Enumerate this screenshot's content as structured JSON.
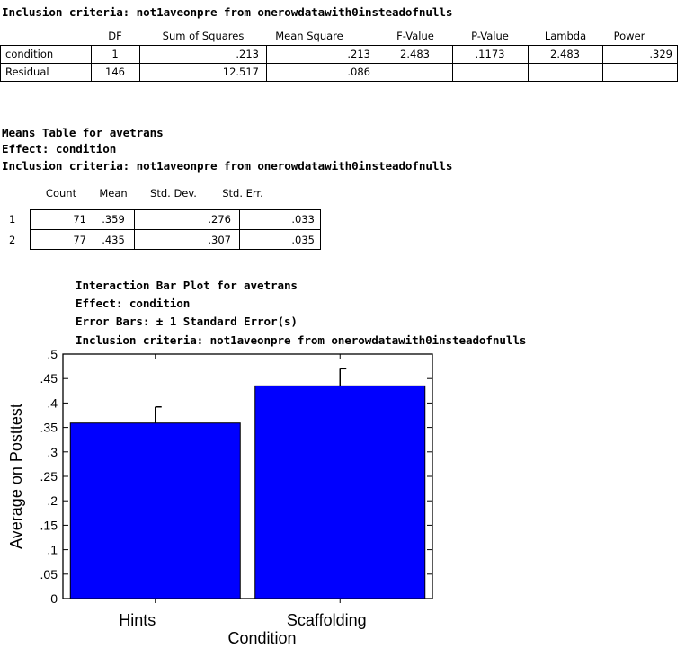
{
  "anova": {
    "header": "Inclusion criteria: not1aveonpre from onerowdatawith0insteadofnulls",
    "columns": [
      "DF",
      "Sum of Squares",
      "Mean Square",
      "F-Value",
      "P-Value",
      "Lambda",
      "Power"
    ],
    "rows": [
      {
        "label": "condition",
        "cells": [
          "1",
          ".213",
          ".213",
          "2.483",
          ".1173",
          "2.483",
          ".329"
        ]
      },
      {
        "label": "Residual",
        "cells": [
          "146",
          "12.517",
          ".086",
          "",
          "",
          "",
          ""
        ]
      }
    ]
  },
  "means": {
    "title": "Means Table for avetrans",
    "effect": "Effect: condition",
    "inclusion": "Inclusion criteria: not1aveonpre from onerowdatawith0insteadofnulls",
    "columns": [
      "Count",
      "Mean",
      "Std. Dev.",
      "Std. Err."
    ],
    "rows": [
      {
        "label": "1",
        "cells": [
          "71",
          ".359",
          ".276",
          ".033"
        ]
      },
      {
        "label": "2",
        "cells": [
          "77",
          ".435",
          ".307",
          ".035"
        ]
      }
    ]
  },
  "plot_header": {
    "title": "Interaction Bar Plot for avetrans",
    "effect": "Effect: condition",
    "error_bars": "Error Bars: ± 1 Standard Error(s)",
    "inclusion": "Inclusion criteria: not1aveonpre from onerowdatawith0insteadofnulls"
  },
  "chart_data": {
    "type": "bar",
    "categories": [
      "Hints",
      "Scaffolding"
    ],
    "values": [
      0.359,
      0.435
    ],
    "errors": [
      0.033,
      0.035
    ],
    "xlabel": "Condition",
    "ylabel": "Average on Posttest",
    "ylim": [
      0,
      0.5
    ],
    "yticks": [
      "0",
      ".05",
      ".1",
      ".15",
      ".2",
      ".25",
      ".3",
      ".35",
      ".4",
      ".45",
      ".5"
    ],
    "bar_color": "#0000ff",
    "grid": false
  }
}
